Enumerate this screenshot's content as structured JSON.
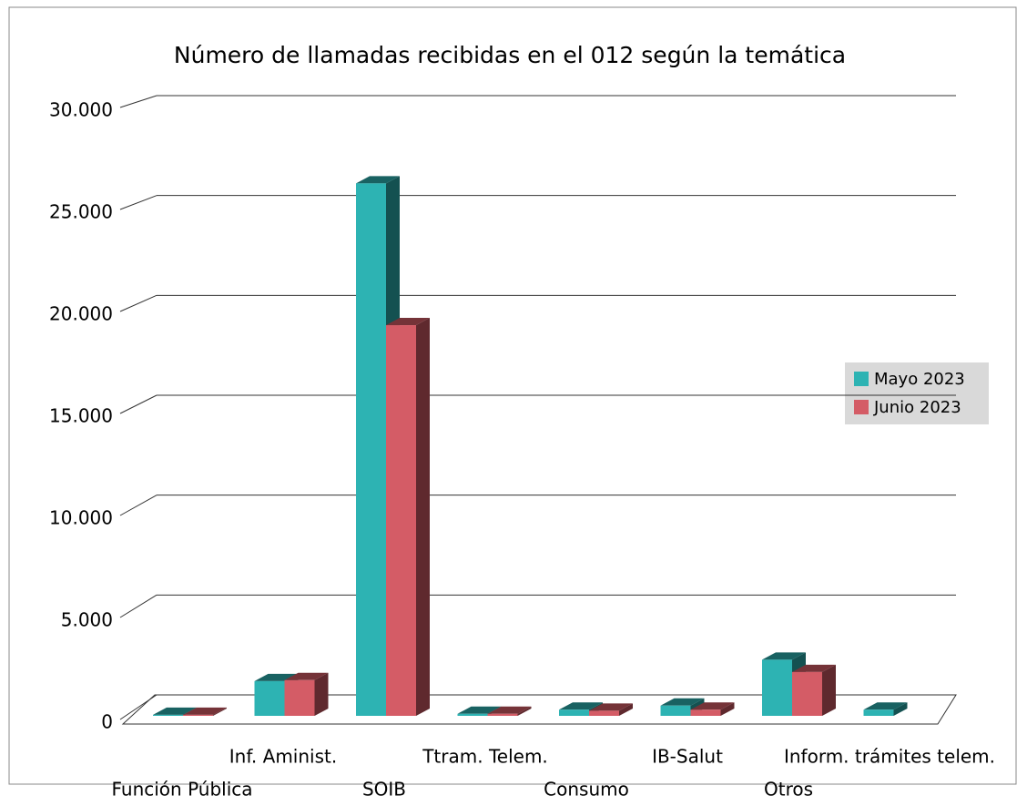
{
  "chart_data": {
    "type": "bar3d",
    "title": "Número de llamadas recibidas en el 012 según la temática",
    "categories": [
      "Función Pública",
      "Inf. Aminist.",
      "SOIB",
      "Ttram. Telem.",
      "Consumo",
      "IB-Salut",
      "Otros",
      "Inform. trámites telem."
    ],
    "series": [
      {
        "name": "Mayo 2023",
        "color": "#2db3b3",
        "values": [
          50,
          1700,
          26100,
          100,
          300,
          500,
          2750,
          300
        ]
      },
      {
        "name": "Junio 2023",
        "color": "#d45c66",
        "values": [
          50,
          1750,
          19150,
          100,
          250,
          300,
          2150,
          null
        ]
      }
    ],
    "ylim": [
      0,
      30000
    ],
    "yticks": [
      0,
      {
        "value": 5000,
        "label": "5.000"
      },
      {
        "value": 10000,
        "label": "10.000"
      },
      {
        "value": 15000,
        "label": "15.000"
      },
      {
        "value": 20000,
        "label": "20.000"
      },
      {
        "value": 25000,
        "label": "25.000"
      },
      {
        "value": 30000,
        "label": "30.000"
      }
    ],
    "grid": true,
    "legend": "right"
  }
}
